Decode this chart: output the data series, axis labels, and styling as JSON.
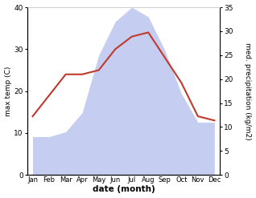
{
  "months": [
    "Jan",
    "Feb",
    "Mar",
    "Apr",
    "May",
    "Jun",
    "Jul",
    "Aug",
    "Sep",
    "Oct",
    "Nov",
    "Dec"
  ],
  "x": [
    0,
    1,
    2,
    3,
    4,
    5,
    6,
    7,
    8,
    9,
    10,
    11
  ],
  "temperature": [
    14,
    19,
    24,
    24,
    25,
    30,
    33,
    34,
    28,
    22,
    14,
    13
  ],
  "precipitation": [
    8,
    8,
    9,
    13,
    25,
    32,
    35,
    33,
    26,
    17,
    11,
    11
  ],
  "temp_color": "#c0392b",
  "precip_fill_color": "#c5cdf0",
  "background_color": "#ffffff",
  "ylabel_left": "max temp (C)",
  "ylabel_right": "med. precipitation (kg/m2)",
  "xlabel": "date (month)",
  "ylim_left": [
    0,
    40
  ],
  "ylim_right": [
    0,
    35
  ],
  "yticks_left": [
    0,
    10,
    20,
    30,
    40
  ],
  "yticks_right": [
    0,
    5,
    10,
    15,
    20,
    25,
    30,
    35
  ]
}
